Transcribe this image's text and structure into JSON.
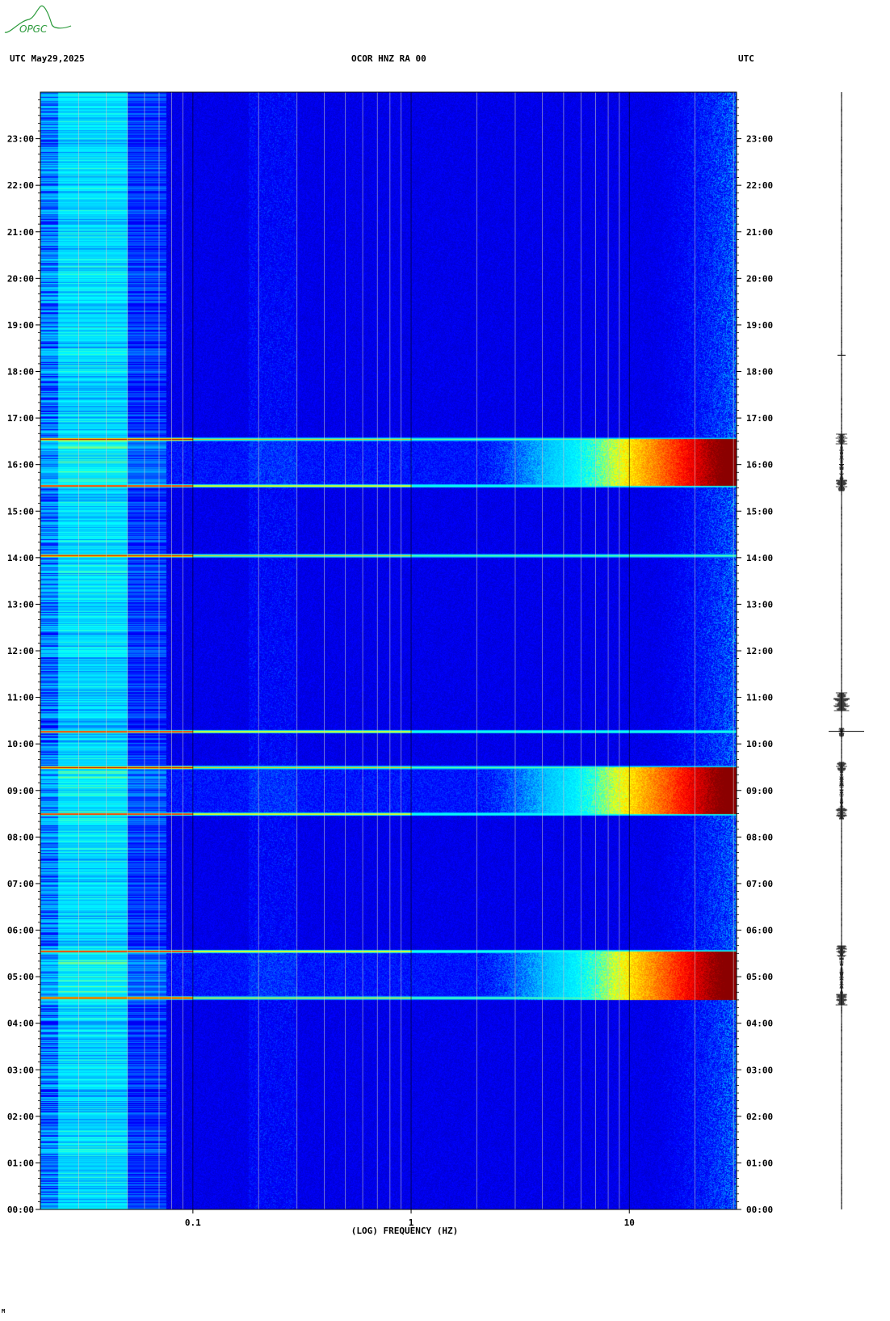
{
  "header": {
    "left_label": "UTC  May29,2025",
    "center_label": "OCOR HNZ RA 00",
    "right_label": "UTC"
  },
  "logo": {
    "text": "OPGC",
    "color": "#2a9a3a"
  },
  "footer": {
    "mark": "M"
  },
  "chart_data": {
    "type": "heatmap",
    "title": "OCOR HNZ RA 00",
    "date": "May29,2025",
    "xlabel": "(LOG) FREQUENCY (HZ)",
    "ylabel": "UTC",
    "x_scale": "log",
    "xlim": [
      0.02,
      31
    ],
    "x_ticks": [
      {
        "value": 0.1,
        "label": "0.1"
      },
      {
        "value": 1,
        "label": "1"
      },
      {
        "value": 10,
        "label": "10"
      }
    ],
    "ylim": [
      0,
      24
    ],
    "y_ticks": [
      "00:00",
      "01:00",
      "02:00",
      "03:00",
      "04:00",
      "05:00",
      "06:00",
      "07:00",
      "08:00",
      "09:00",
      "10:00",
      "11:00",
      "12:00",
      "13:00",
      "14:00",
      "15:00",
      "16:00",
      "17:00",
      "18:00",
      "19:00",
      "20:00",
      "21:00",
      "22:00",
      "23:00"
    ],
    "grid": true,
    "colormap": [
      "#00008b",
      "#0000ff",
      "#00bfff",
      "#00ffff",
      "#ffff00",
      "#ff8000",
      "#ff0000",
      "#8b0000"
    ],
    "high_energy_bands": [
      {
        "start_hour": 15.55,
        "end_hour": 16.55
      },
      {
        "start_hour": 8.5,
        "end_hour": 9.5
      },
      {
        "start_hour": 4.5,
        "end_hour": 5.55
      }
    ],
    "spectral_lines_hours": [
      16.55,
      15.55,
      14.05,
      10.27,
      9.5,
      8.5,
      5.55,
      4.55
    ]
  }
}
